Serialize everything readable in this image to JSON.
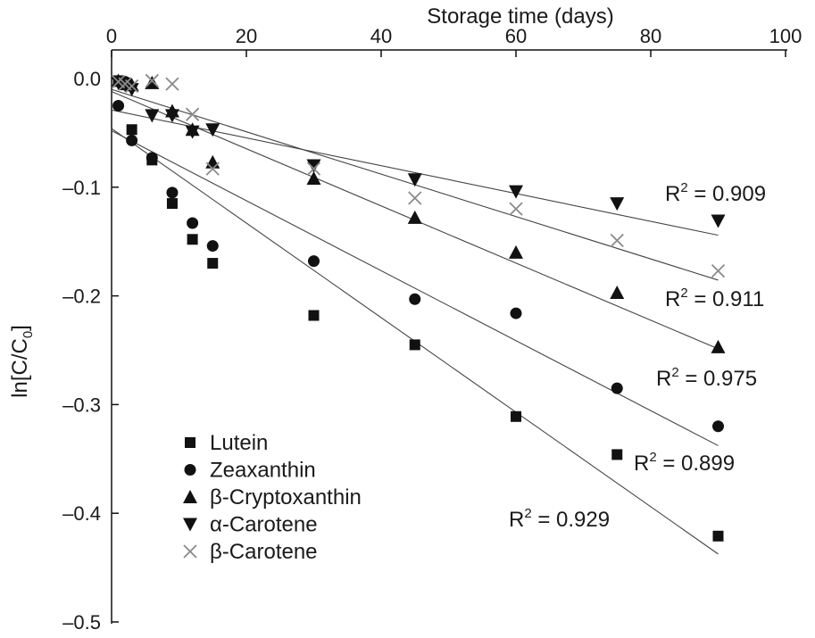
{
  "chart_data": {
    "type": "scatter",
    "title": "",
    "xlabel": "Storage time (days)",
    "ylabel_parts": {
      "main": "ln[C/C",
      "sub": "0",
      "end": "]"
    },
    "xlim": [
      0,
      100
    ],
    "ylim": [
      -0.5,
      0.0
    ],
    "x_axis_position": "top",
    "x_ticks": [
      0,
      20,
      40,
      60,
      80,
      100
    ],
    "x_tick_labels": [
      "0",
      "20",
      "40",
      "60",
      "80",
      "100"
    ],
    "y_ticks": [
      0.0,
      -0.1,
      -0.2,
      -0.3,
      -0.4,
      -0.5
    ],
    "y_tick_labels": [
      "0.0",
      "–0.1",
      "–0.2",
      "–0.3",
      "–0.4",
      "–0.5"
    ],
    "grid": false,
    "legend_position": "bottom-left",
    "series": [
      {
        "name": "Lutein",
        "marker": "square",
        "color": "#111111",
        "x": [
          1,
          2,
          3,
          6,
          9,
          12,
          15,
          30,
          45,
          60,
          75,
          90
        ],
        "y": [
          -0.002,
          -0.004,
          -0.047,
          -0.075,
          -0.115,
          -0.148,
          -0.17,
          -0.218,
          -0.245,
          -0.311,
          -0.346,
          -0.421
        ],
        "fit": {
          "intercept": -0.046,
          "slope": -0.00435
        },
        "r2": "R2 = 0.929"
      },
      {
        "name": "Zeaxanthin",
        "marker": "circle",
        "color": "#111111",
        "x": [
          1,
          2,
          3,
          6,
          9,
          12,
          15,
          30,
          45,
          60,
          75,
          90
        ],
        "y": [
          -0.025,
          -0.003,
          -0.057,
          -0.073,
          -0.105,
          -0.133,
          -0.154,
          -0.168,
          -0.203,
          -0.216,
          -0.285,
          -0.32
        ],
        "fit": {
          "intercept": -0.048,
          "slope": -0.00322
        },
        "r2": "R2 = 0.899"
      },
      {
        "name": "β-Cryptoxanthin",
        "marker": "triangle-up",
        "color": "#111111",
        "x": [
          1,
          2,
          3,
          6,
          9,
          12,
          15,
          30,
          45,
          60,
          75,
          90
        ],
        "y": [
          -0.002,
          -0.005,
          -0.006,
          -0.004,
          -0.03,
          -0.047,
          -0.077,
          -0.092,
          -0.128,
          -0.16,
          -0.197,
          -0.247
        ],
        "fit": {
          "intercept": -0.012,
          "slope": -0.00263
        },
        "r2": "R2 = 0.975"
      },
      {
        "name": "α-Carotene",
        "marker": "triangle-down",
        "color": "#111111",
        "x": [
          1,
          2,
          3,
          6,
          9,
          12,
          15,
          30,
          45,
          60,
          75,
          90
        ],
        "y": [
          -0.004,
          -0.006,
          -0.01,
          -0.034,
          -0.034,
          -0.049,
          -0.047,
          -0.08,
          -0.093,
          -0.104,
          -0.115,
          -0.131
        ],
        "fit": {
          "intercept": -0.029,
          "slope": -0.00128
        },
        "r2": "R2 = 0.909"
      },
      {
        "name": "β-Carotene",
        "marker": "cross",
        "color": "#8a8a8a",
        "x": [
          1,
          2,
          3,
          6,
          9,
          12,
          15,
          30,
          45,
          60,
          75,
          90
        ],
        "y": [
          -0.003,
          -0.005,
          -0.007,
          -0.002,
          -0.005,
          -0.033,
          -0.083,
          -0.083,
          -0.11,
          -0.12,
          -0.149,
          -0.177
        ],
        "fit": {
          "intercept": -0.01,
          "slope": -0.00195
        },
        "r2": "R2 = 0.911"
      }
    ]
  }
}
